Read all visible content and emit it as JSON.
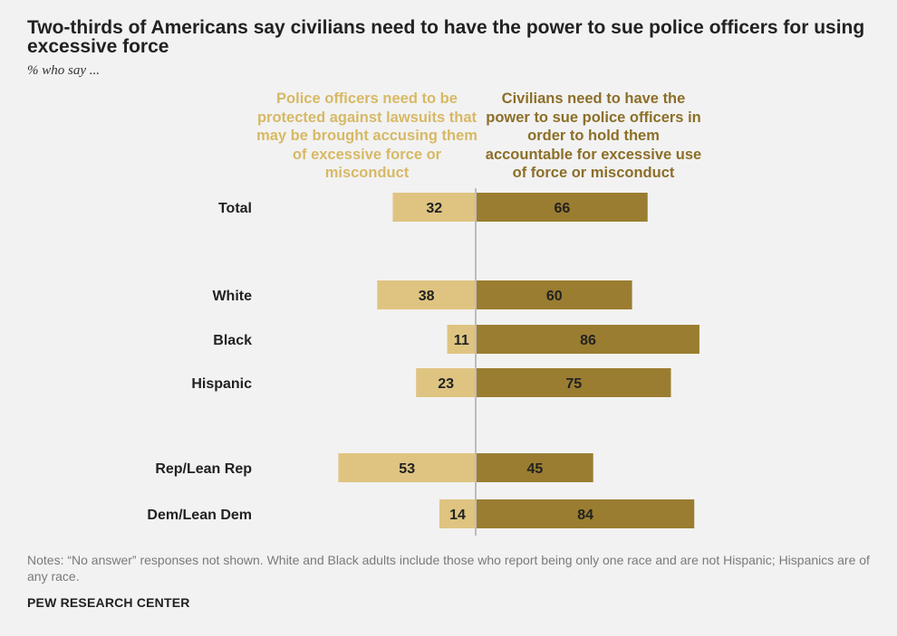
{
  "chart_data": {
    "type": "bar",
    "title": "Two-thirds of Americans say civilians need to have the power to sue police officers for using excessive force",
    "subtitle": "% who say ...",
    "categories": [
      "Total",
      "White",
      "Black",
      "Hispanic",
      "Rep/Lean Rep",
      "Dem/Lean Dem"
    ],
    "series": [
      {
        "name": "Police officers need to be protected against lawsuits that may be brought accusing them of excessive force or misconduct",
        "values": [
          32,
          38,
          11,
          23,
          53,
          14
        ],
        "color": "#dfc481"
      },
      {
        "name": "Civilians need to have the power to sue police officers in order to hold them accountable for excessive use of force or misconduct",
        "values": [
          66,
          60,
          86,
          75,
          45,
          84
        ],
        "color": "#9a7d30"
      }
    ],
    "legend_placement": "top",
    "grid": false
  },
  "notes": "Notes: “No answer” responses not shown. White and Black adults include those who report being only one race and are not Hispanic; Hispanics are of any race.",
  "source": "PEW RESEARCH CENTER",
  "colors": {
    "left_legend": "#d7b965",
    "right_legend": "#8c6f28",
    "axis": "#bdbdbd"
  }
}
